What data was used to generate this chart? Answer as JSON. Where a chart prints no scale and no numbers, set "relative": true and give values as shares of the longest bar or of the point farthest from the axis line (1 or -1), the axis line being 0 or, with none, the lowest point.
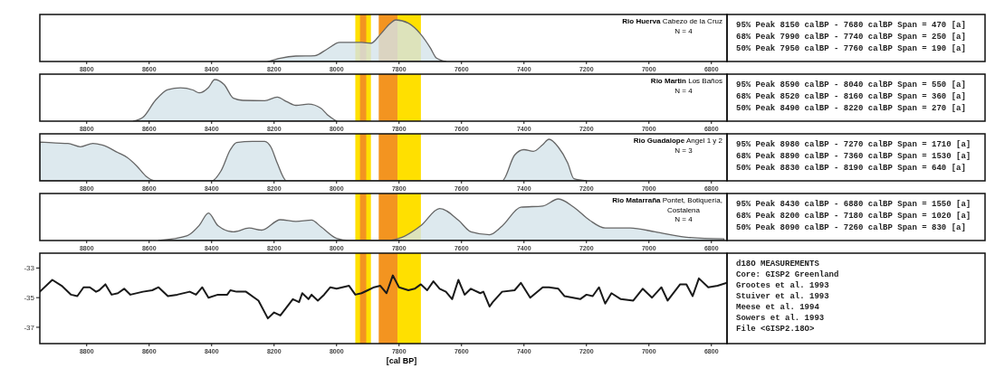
{
  "chart_data": [
    {
      "type": "area",
      "relative": true,
      "color": "#d4e3ea",
      "xlim": [
        8950,
        6750
      ],
      "xticks": [
        8800,
        8600,
        8400,
        8200,
        8000,
        7800,
        7600,
        7400,
        7200,
        7000,
        6800
      ],
      "x": [
        8220,
        8180,
        8130,
        8070,
        8030,
        7990,
        7950,
        7920,
        7890,
        7860,
        7830,
        7810,
        7770,
        7730,
        7700,
        7680,
        7650
      ],
      "values": [
        0,
        0.08,
        0.13,
        0.14,
        0.3,
        0.46,
        0.46,
        0.46,
        0.44,
        0.65,
        0.9,
        1.0,
        0.92,
        0.65,
        0.33,
        0.08,
        0
      ],
      "bands": [
        {
          "axis": "x",
          "from": 7940,
          "to": 7890,
          "color": "#ffe000"
        },
        {
          "axis": "x",
          "from": 7925,
          "to": 7905,
          "color": "#f39420"
        },
        {
          "axis": "x",
          "from": 7865,
          "to": 7805,
          "color": "#f39420"
        },
        {
          "axis": "x",
          "from": 7805,
          "to": 7730,
          "color": "#ffe000"
        }
      ],
      "annotations": [
        "Rio Huerva",
        "Cabezo de la Cruz",
        "N = 4",
        "95% Peak 8150 calBP - 7680 calBP Span = 470 [a]",
        "68% Peak 7990 calBP - 7740 calBP Span = 250 [a]",
        "50% Peak 7950 calBP - 7760 calBP Span = 190 [a]"
      ]
    },
    {
      "type": "area",
      "relative": true,
      "color": "#d4e3ea",
      "xlim": [
        8950,
        6750
      ],
      "xticks": [
        8800,
        8600,
        8400,
        8200,
        8000,
        7800,
        7600,
        7400,
        7200,
        7000,
        6800
      ],
      "x": [
        8650,
        8620,
        8580,
        8540,
        8500,
        8460,
        8440,
        8410,
        8390,
        8360,
        8330,
        8300,
        8230,
        8190,
        8160,
        8130,
        8090,
        8050,
        8030,
        8000
      ],
      "values": [
        0,
        0.09,
        0.5,
        0.76,
        0.8,
        0.75,
        0.68,
        0.81,
        1.0,
        0.88,
        0.55,
        0.5,
        0.49,
        0.58,
        0.47,
        0.38,
        0.41,
        0.31,
        0.16,
        0
      ],
      "bands": [
        {
          "axis": "x",
          "from": 7940,
          "to": 7890,
          "color": "#ffe000"
        },
        {
          "axis": "x",
          "from": 7925,
          "to": 7905,
          "color": "#f39420"
        },
        {
          "axis": "x",
          "from": 7865,
          "to": 7805,
          "color": "#f39420"
        },
        {
          "axis": "x",
          "from": 7805,
          "to": 7730,
          "color": "#ffe000"
        }
      ],
      "annotations": [
        "Rio Martin",
        "Los Baños",
        "N = 4",
        "95% Peak 8590 calBP - 8040 calBP Span = 550 [a]",
        "68% Peak 8520 calBP - 8160 calBP Span = 360 [a]",
        "50% Peak 8490 calBP - 8220 calBP Span = 270 [a]"
      ]
    },
    {
      "type": "area",
      "relative": true,
      "color": "#d4e3ea",
      "xlim": [
        8950,
        6750
      ],
      "xticks": [
        8800,
        8600,
        8400,
        8200,
        8000,
        7800,
        7600,
        7400,
        7200,
        7000,
        6800
      ],
      "x": [
        8950,
        8900,
        8860,
        8820,
        8780,
        8750,
        8700,
        8670,
        8640,
        8610,
        8580,
        8400,
        8370,
        8340,
        8320,
        8270,
        8230,
        8210,
        8190,
        8160,
        7470,
        7430,
        7400,
        7370,
        7340,
        7320,
        7290,
        7260,
        7240,
        7200
      ],
      "values": [
        0.93,
        0.91,
        0.9,
        0.82,
        0.9,
        0.86,
        0.68,
        0.56,
        0.36,
        0.11,
        0,
        0,
        0.24,
        0.75,
        0.92,
        0.95,
        0.95,
        0.81,
        0.43,
        0,
        0,
        0.62,
        0.75,
        0.71,
        0.87,
        1.0,
        0.81,
        0.43,
        0.05,
        0
      ],
      "bands": [
        {
          "axis": "x",
          "from": 7940,
          "to": 7890,
          "color": "#ffe000"
        },
        {
          "axis": "x",
          "from": 7925,
          "to": 7905,
          "color": "#f39420"
        },
        {
          "axis": "x",
          "from": 7865,
          "to": 7805,
          "color": "#f39420"
        },
        {
          "axis": "x",
          "from": 7805,
          "to": 7730,
          "color": "#ffe000"
        }
      ],
      "annotations": [
        "Rio Guadalope",
        "Angel 1 y 2",
        "N = 3",
        "95% Peak 8980 calBP - 7270 calBP Span = 1710 [a]",
        "68% Peak 8890 calBP - 7360 calBP Span = 1530 [a]",
        "50% Peak 8830 calBP - 8190 calBP Span = 640 [a]"
      ]
    },
    {
      "type": "area",
      "relative": true,
      "color": "#d4e3ea",
      "xlim": [
        8950,
        6750
      ],
      "xticks": [
        8800,
        8600,
        8400,
        8200,
        8000,
        7800,
        7600,
        7400,
        7200,
        7000,
        6800
      ],
      "x": [
        8570,
        8480,
        8440,
        8410,
        8380,
        8330,
        8280,
        8240,
        8180,
        8130,
        8080,
        8050,
        8000,
        7960,
        7840,
        7790,
        7730,
        7670,
        7610,
        7570,
        7510,
        7470,
        7410,
        7340,
        7290,
        7240,
        7190,
        7140,
        7060,
        6980,
        6880,
        6760
      ],
      "values": [
        0,
        0.11,
        0.36,
        0.66,
        0.36,
        0.21,
        0.3,
        0.25,
        0.5,
        0.46,
        0.49,
        0.33,
        0.05,
        0,
        0,
        0.08,
        0.36,
        0.77,
        0.49,
        0.21,
        0.14,
        0.35,
        0.8,
        0.83,
        1.0,
        0.8,
        0.49,
        0.3,
        0.3,
        0.21,
        0.08,
        0.04
      ],
      "bands": [
        {
          "axis": "x",
          "from": 7940,
          "to": 7890,
          "color": "#ffe000"
        },
        {
          "axis": "x",
          "from": 7925,
          "to": 7905,
          "color": "#f39420"
        },
        {
          "axis": "x",
          "from": 7865,
          "to": 7805,
          "color": "#f39420"
        },
        {
          "axis": "x",
          "from": 7805,
          "to": 7730,
          "color": "#ffe000"
        }
      ],
      "annotations": [
        "Rio Matarraña",
        "Pontet, Botiquería,",
        "Costalena",
        "N = 4",
        "95% Peak 8430 calBP - 6880 calBP Span = 1550 [a]",
        "68% Peak 8200 calBP - 7180 calBP Span = 1020 [a]",
        "50% Peak 8090 calBP - 7260 calBP Span = 830 [a]"
      ]
    },
    {
      "type": "line",
      "color": "#1a1a1a",
      "xlim": [
        8950,
        6750
      ],
      "xticks": [
        8800,
        8600,
        8400,
        8200,
        8000,
        7800,
        7600,
        7400,
        7200,
        7000,
        6800
      ],
      "ylim": [
        -38.1,
        -32
      ],
      "yticks": [
        -33,
        -35,
        -37
      ],
      "xlabel": "[cal BP]",
      "x": [
        8950,
        8910,
        8880,
        8850,
        8830,
        8810,
        8790,
        8770,
        8760,
        8740,
        8720,
        8700,
        8680,
        8660,
        8620,
        8590,
        8570,
        8540,
        8510,
        8470,
        8450,
        8430,
        8410,
        8380,
        8350,
        8340,
        8320,
        8290,
        8250,
        8220,
        8200,
        8180,
        8140,
        8120,
        8110,
        8090,
        8080,
        8060,
        8040,
        8020,
        8000,
        7960,
        7940,
        7920,
        7900,
        7880,
        7860,
        7840,
        7820,
        7800,
        7770,
        7750,
        7730,
        7710,
        7690,
        7670,
        7650,
        7630,
        7610,
        7590,
        7570,
        7540,
        7530,
        7510,
        7500,
        7470,
        7430,
        7410,
        7380,
        7340,
        7320,
        7290,
        7270,
        7220,
        7200,
        7180,
        7160,
        7140,
        7120,
        7090,
        7050,
        7020,
        6990,
        6960,
        6940,
        6900,
        6880,
        6860,
        6840,
        6810,
        6780,
        6750
      ],
      "values": [
        -34.6,
        -33.8,
        -34.2,
        -34.8,
        -34.9,
        -34.3,
        -34.3,
        -34.6,
        -34.5,
        -34.1,
        -34.8,
        -34.7,
        -34.4,
        -34.8,
        -34.6,
        -34.5,
        -34.3,
        -34.9,
        -34.8,
        -34.6,
        -34.8,
        -34.3,
        -35.0,
        -34.8,
        -34.8,
        -34.5,
        -34.6,
        -34.6,
        -35.2,
        -36.4,
        -36.0,
        -36.2,
        -35.1,
        -35.3,
        -34.7,
        -35.1,
        -34.8,
        -35.2,
        -34.8,
        -34.3,
        -34.4,
        -34.2,
        -34.8,
        -34.7,
        -34.5,
        -34.3,
        -34.2,
        -34.7,
        -33.5,
        -34.3,
        -34.5,
        -34.4,
        -34.1,
        -34.5,
        -33.9,
        -34.4,
        -34.6,
        -35.1,
        -33.8,
        -34.8,
        -34.4,
        -34.7,
        -34.6,
        -35.6,
        -35.3,
        -34.6,
        -34.5,
        -34.0,
        -35.0,
        -34.3,
        -34.3,
        -34.4,
        -34.9,
        -35.1,
        -34.8,
        -34.9,
        -34.3,
        -35.4,
        -34.7,
        -35.1,
        -35.2,
        -34.4,
        -35.0,
        -34.3,
        -35.2,
        -34.1,
        -34.1,
        -34.9,
        -33.7,
        -34.3,
        -34.2,
        -34.0
      ],
      "bands": [
        {
          "axis": "x",
          "from": 7940,
          "to": 7890,
          "color": "#ffe000"
        },
        {
          "axis": "x",
          "from": 7925,
          "to": 7905,
          "color": "#f39420"
        },
        {
          "axis": "x",
          "from": 7865,
          "to": 7805,
          "color": "#f39420"
        },
        {
          "axis": "x",
          "from": 7805,
          "to": 7730,
          "color": "#ffe000"
        }
      ],
      "annotations": [
        "d18O MEASUREMENTS",
        "Core: GISP2 Greenland",
        "Grootes et al. 1993",
        "Stuiver et al. 1993",
        "Meese et al. 1994",
        "Sowers et al. 1993",
        "File <GISP2.18O>"
      ]
    }
  ]
}
